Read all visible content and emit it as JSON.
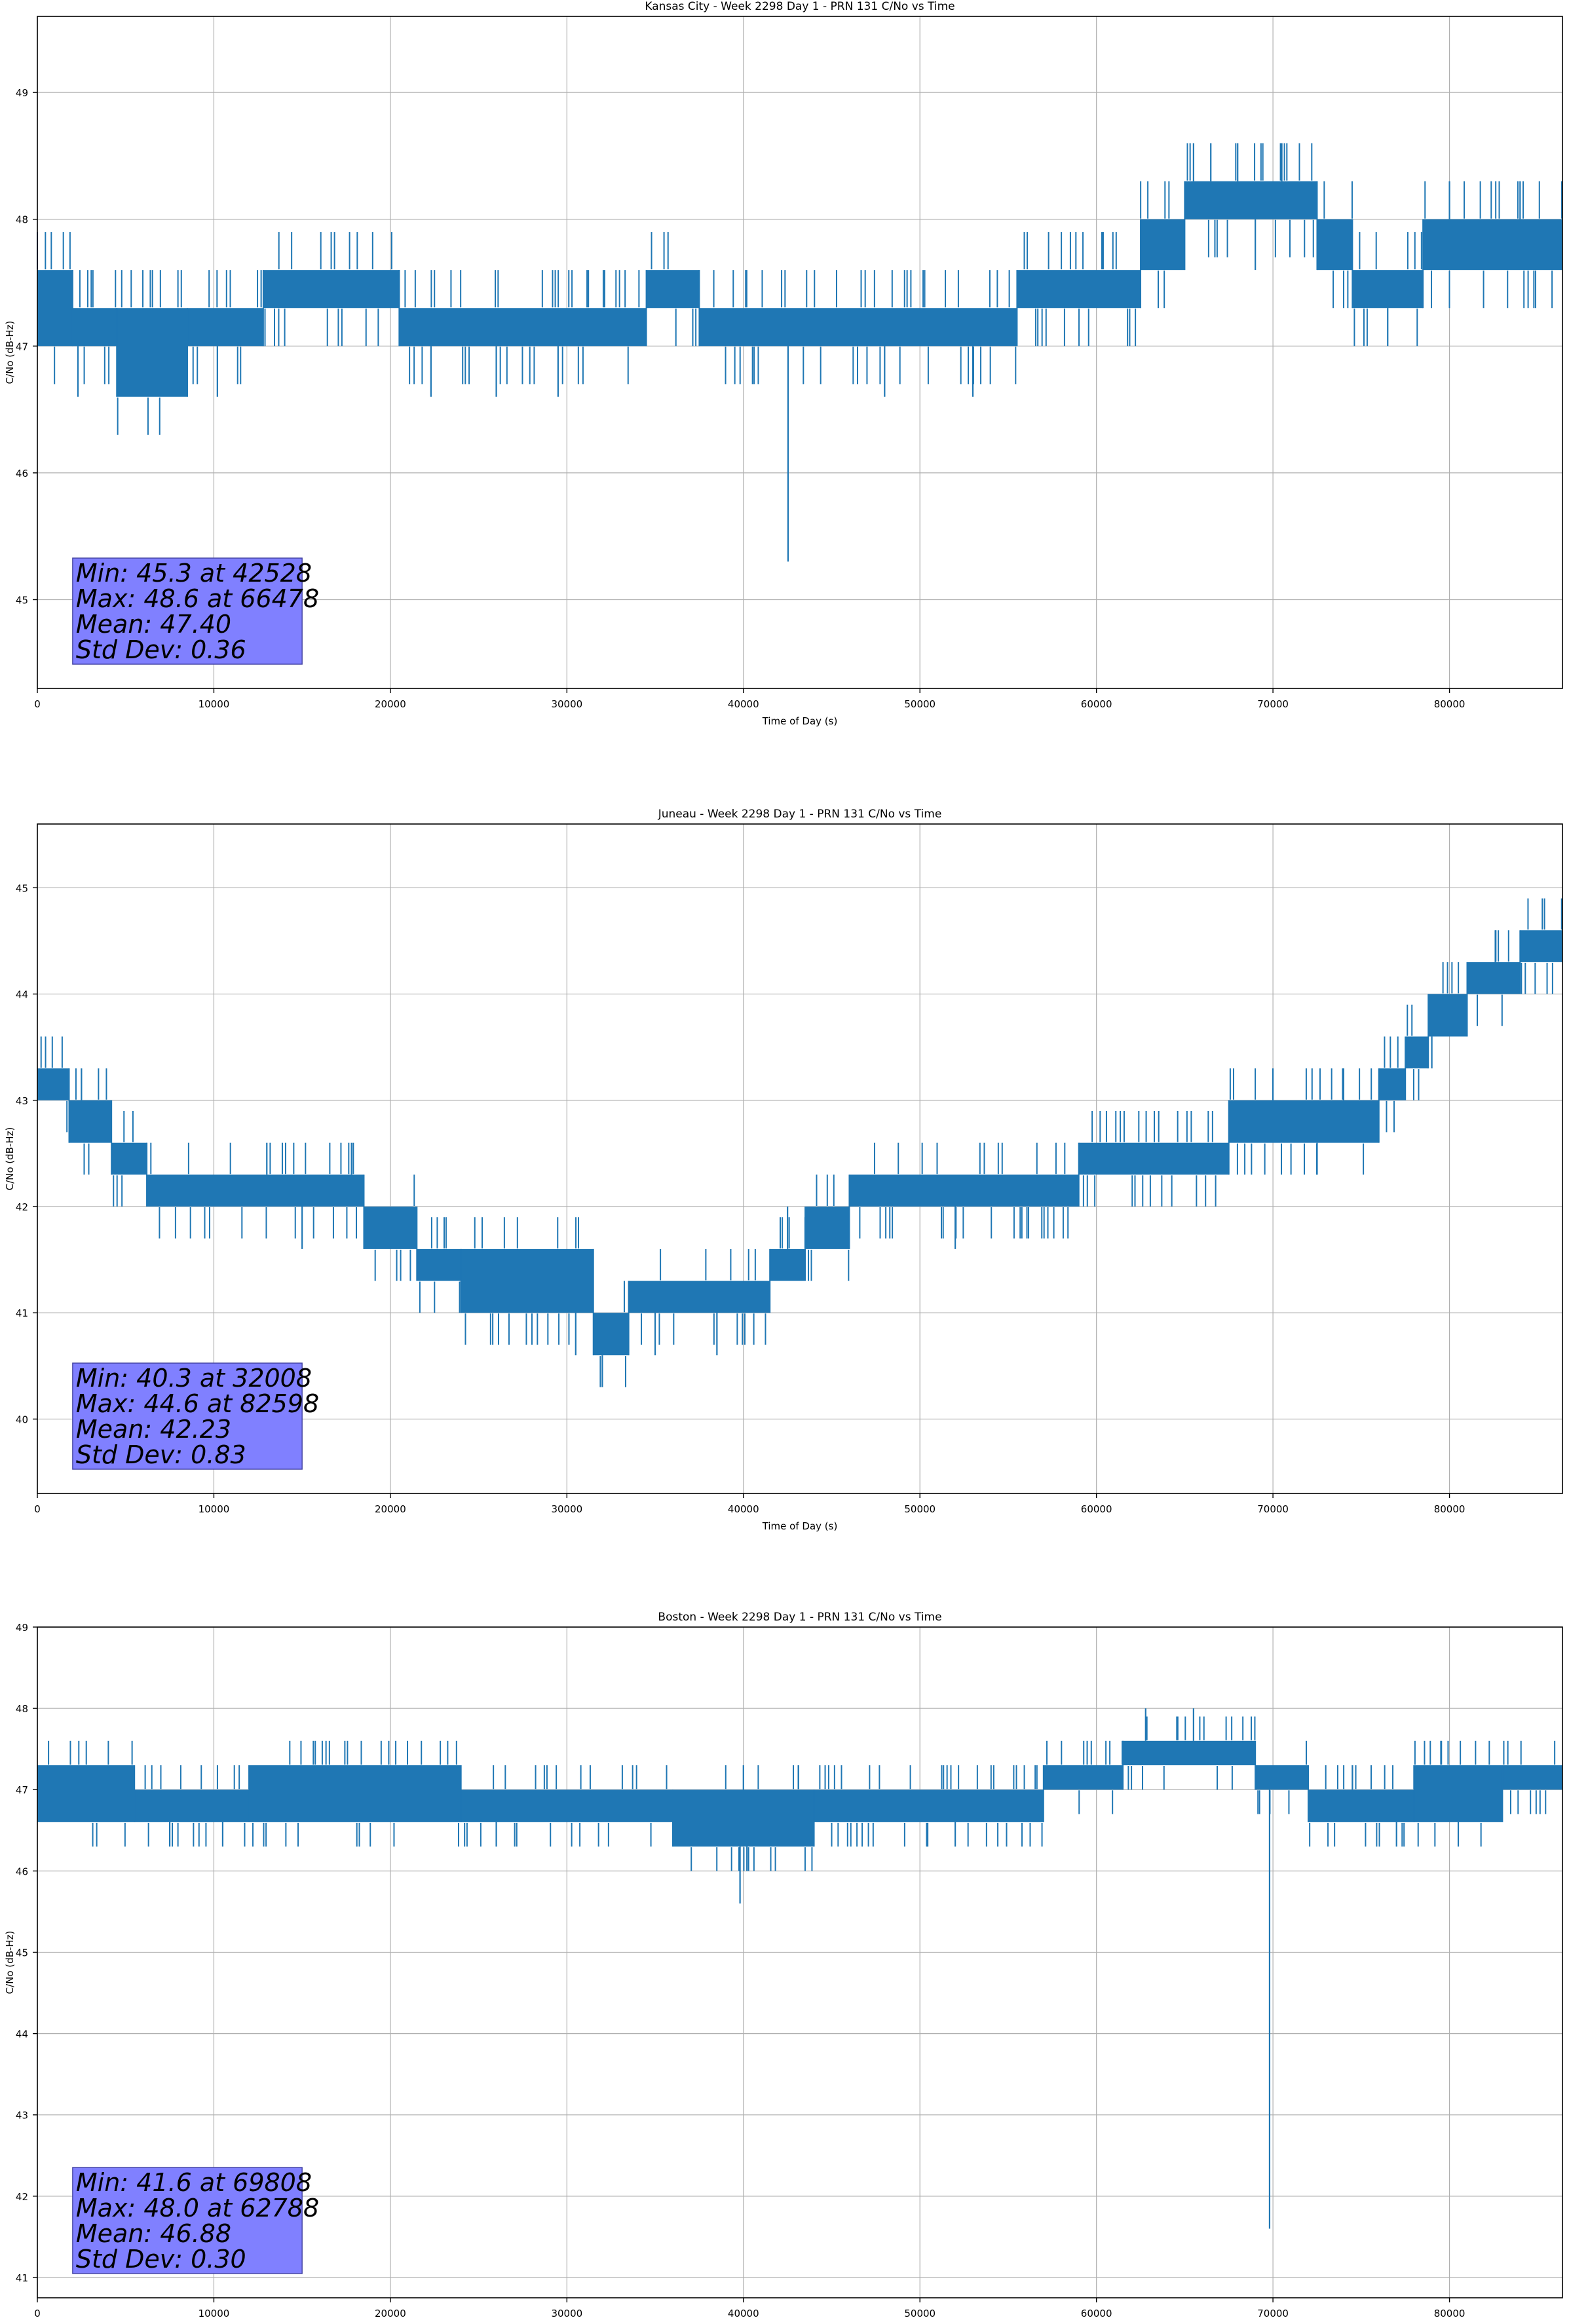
{
  "chart_data": [
    {
      "type": "line",
      "title": "Kansas City - Week 2298 Day 1 - PRN 131 C/No vs Time",
      "xlabel": "Time of Day (s)",
      "ylabel": "C/No (dB-Hz)",
      "xlim": [
        0,
        86400
      ],
      "ylim": [
        44.3,
        49.6
      ],
      "xticks": [
        0,
        10000,
        20000,
        30000,
        40000,
        50000,
        60000,
        70000,
        80000
      ],
      "yticks": [
        45,
        46,
        47,
        48,
        49
      ],
      "grid": true,
      "color": "#1f77b4",
      "band_segments": [
        [
          0,
          2000,
          47.0,
          47.6
        ],
        [
          2000,
          4500,
          47.0,
          47.3
        ],
        [
          4500,
          8500,
          46.6,
          47.3
        ],
        [
          8500,
          12800,
          47.0,
          47.3
        ],
        [
          12800,
          20500,
          47.3,
          47.6
        ],
        [
          20500,
          34500,
          47.0,
          47.3
        ],
        [
          34500,
          37500,
          47.3,
          47.6
        ],
        [
          37500,
          55500,
          47.0,
          47.3
        ],
        [
          55500,
          62500,
          47.3,
          47.6
        ],
        [
          62500,
          65000,
          47.6,
          48.0
        ],
        [
          65000,
          72500,
          48.0,
          48.3
        ],
        [
          72500,
          74500,
          47.6,
          48.0
        ],
        [
          74500,
          78500,
          47.3,
          47.6
        ],
        [
          78500,
          86400,
          47.6,
          48.0
        ]
      ],
      "spikes_down": [
        [
          2300,
          46.6
        ],
        [
          6200,
          46.6
        ],
        [
          10200,
          46.6
        ],
        [
          22300,
          46.6
        ],
        [
          26000,
          46.6
        ],
        [
          29500,
          46.6
        ],
        [
          42528,
          45.3
        ],
        [
          48000,
          46.6
        ],
        [
          53000,
          46.6
        ],
        [
          69000,
          47.6
        ],
        [
          76500,
          47.0
        ]
      ],
      "spikes_up": [
        [
          65500,
          48.6
        ],
        [
          66478,
          48.6
        ],
        [
          68000,
          48.6
        ],
        [
          70500,
          48.6
        ],
        [
          80000,
          48.3
        ],
        [
          84000,
          48.3
        ]
      ],
      "stats": [
        "Min: 45.3 at 42528",
        "Max: 48.6 at 66478",
        "Mean: 47.40",
        "Std Dev: 0.36"
      ]
    },
    {
      "type": "line",
      "title": "Juneau - Week 2298 Day 1 - PRN 131 C/No vs Time",
      "xlabel": "Time of Day (s)",
      "ylabel": "C/No (dB-Hz)",
      "xlim": [
        0,
        86400
      ],
      "ylim": [
        39.3,
        45.6
      ],
      "xticks": [
        0,
        10000,
        20000,
        30000,
        40000,
        50000,
        60000,
        70000,
        80000
      ],
      "yticks": [
        40,
        41,
        42,
        43,
        44,
        45
      ],
      "grid": true,
      "color": "#1f77b4",
      "band_segments": [
        [
          0,
          1800,
          43.0,
          43.3
        ],
        [
          1800,
          4200,
          42.6,
          43.0
        ],
        [
          4200,
          6200,
          42.3,
          42.6
        ],
        [
          6200,
          18500,
          42.0,
          42.3
        ],
        [
          18500,
          21500,
          41.6,
          42.0
        ],
        [
          21500,
          24000,
          41.3,
          41.6
        ],
        [
          24000,
          31500,
          41.0,
          41.6
        ],
        [
          31500,
          33500,
          40.6,
          41.0
        ],
        [
          33500,
          41500,
          41.0,
          41.3
        ],
        [
          41500,
          43500,
          41.3,
          41.6
        ],
        [
          43500,
          46000,
          41.6,
          42.0
        ],
        [
          46000,
          59000,
          42.0,
          42.3
        ],
        [
          59000,
          67500,
          42.3,
          42.6
        ],
        [
          67500,
          76000,
          42.6,
          43.0
        ],
        [
          76000,
          77500,
          43.0,
          43.3
        ],
        [
          77500,
          78800,
          43.3,
          43.6
        ],
        [
          78800,
          81000,
          43.6,
          44.0
        ],
        [
          81000,
          84000,
          44.0,
          44.3
        ],
        [
          84000,
          86400,
          44.3,
          44.6
        ]
      ],
      "spikes_down": [
        [
          32008,
          40.3
        ],
        [
          30500,
          40.6
        ],
        [
          35000,
          40.6
        ],
        [
          38500,
          40.6
        ],
        [
          15000,
          41.6
        ],
        [
          52000,
          41.6
        ],
        [
          72500,
          42.3
        ],
        [
          79000,
          43.3
        ]
      ],
      "spikes_up": [
        [
          2500,
          43.3
        ],
        [
          13000,
          42.6
        ],
        [
          17800,
          42.6
        ],
        [
          27000,
          41.6
        ],
        [
          42500,
          42.0
        ],
        [
          58000,
          42.3
        ],
        [
          70000,
          43.3
        ],
        [
          74000,
          43.3
        ],
        [
          82598,
          44.6
        ]
      ],
      "stats": [
        "Min: 40.3 at 32008",
        "Max: 44.6 at 82598",
        "Mean: 42.23",
        "Std Dev: 0.83"
      ]
    },
    {
      "type": "line",
      "title": "Boston - Week 2298 Day 1 - PRN 131 C/No vs Time",
      "xlabel": "Time of Day (s)",
      "ylabel": "C/No (dB-Hz)",
      "xlim": [
        0,
        86400
      ],
      "ylim": [
        40.75,
        49.0
      ],
      "xticks": [
        0,
        10000,
        20000,
        30000,
        40000,
        50000,
        60000,
        70000,
        80000
      ],
      "yticks": [
        41,
        42,
        43,
        44,
        45,
        46,
        47,
        48,
        49
      ],
      "grid": true,
      "color": "#1f77b4",
      "band_segments": [
        [
          0,
          5500,
          46.6,
          47.3
        ],
        [
          5500,
          12000,
          46.6,
          47.0
        ],
        [
          12000,
          24000,
          46.6,
          47.3
        ],
        [
          24000,
          36000,
          46.6,
          47.0
        ],
        [
          36000,
          44000,
          46.3,
          47.0
        ],
        [
          44000,
          57000,
          46.6,
          47.0
        ],
        [
          57000,
          61500,
          47.0,
          47.3
        ],
        [
          61500,
          69000,
          47.3,
          47.6
        ],
        [
          69000,
          72000,
          47.0,
          47.3
        ],
        [
          72000,
          78000,
          46.6,
          47.0
        ],
        [
          78000,
          83000,
          46.6,
          47.3
        ],
        [
          83000,
          86400,
          47.0,
          47.3
        ]
      ],
      "spikes_down": [
        [
          7500,
          46.3
        ],
        [
          10500,
          46.3
        ],
        [
          26000,
          46.3
        ],
        [
          39808,
          45.6
        ],
        [
          40200,
          46.0
        ],
        [
          52000,
          46.3
        ],
        [
          69808,
          41.6
        ],
        [
          77000,
          46.3
        ],
        [
          80500,
          46.3
        ]
      ],
      "spikes_up": [
        [
          3000,
          47.3
        ],
        [
          15500,
          47.3
        ],
        [
          22500,
          47.3
        ],
        [
          40000,
          47.3
        ],
        [
          62788,
          48.0
        ],
        [
          65500,
          48.0
        ],
        [
          67000,
          47.6
        ],
        [
          74500,
          47.3
        ]
      ],
      "stats": [
        "Min: 41.6 at 69808",
        "Max: 48.0 at 62788",
        "Mean: 46.88",
        "Std Dev: 0.30"
      ]
    }
  ]
}
